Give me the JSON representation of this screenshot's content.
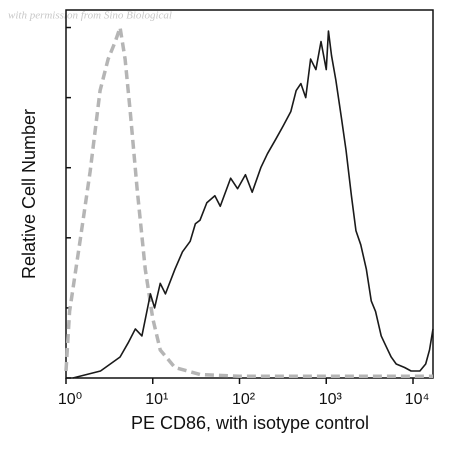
{
  "chart_data": {
    "type": "line",
    "annotation": "with permission from Sino Biological",
    "x_label": "PE CD86, with isotype control",
    "y_label": "Relative Cell Number",
    "xscale": "log",
    "xlim": [
      1,
      17000
    ],
    "ylim": [
      0,
      105
    ],
    "xticks": [
      {
        "value": 1,
        "label": "10⁰"
      },
      {
        "value": 10,
        "label": "10¹"
      },
      {
        "value": 100,
        "label": "10²"
      },
      {
        "value": 1000,
        "label": "10³"
      },
      {
        "value": 10000,
        "label": "10⁴"
      }
    ],
    "yticks": [
      0,
      20,
      40,
      60,
      80,
      100
    ],
    "series": [
      {
        "style": "dashed",
        "color": "#b5b5b5",
        "x": [
          1.0,
          1.1,
          1.45,
          1.9,
          2.47,
          3.06,
          3.7,
          4.2,
          4.8,
          5.5,
          6.6,
          8.2,
          10,
          12.2,
          18,
          35,
          100,
          1000,
          17000
        ],
        "values": [
          2,
          19,
          39,
          59,
          82,
          91,
          96,
          100,
          91,
          76,
          54,
          31,
          17,
          8,
          3,
          1,
          0.5,
          0.5,
          0.5
        ]
      },
      {
        "style": "solid",
        "color": "#1a1a1a",
        "x": [
          1.2,
          2.5,
          4.2,
          5.2,
          6.3,
          7.5,
          9.4,
          10.5,
          12.2,
          14,
          18,
          22,
          27,
          31,
          35,
          42,
          52,
          60,
          79,
          95,
          117,
          140,
          176,
          210,
          260,
          320,
          390,
          450,
          510,
          580,
          660,
          760,
          870,
          1000,
          1060,
          1150,
          1290,
          1500,
          1690,
          1950,
          2200,
          2500,
          2900,
          3300,
          3700,
          4300,
          4900,
          5600,
          6400,
          8000,
          9500,
          12000,
          14000,
          15500,
          17000
        ],
        "values": [
          0,
          2,
          6,
          10,
          14,
          12,
          24,
          20,
          27,
          24,
          31,
          36,
          39,
          44,
          45,
          50,
          52,
          49,
          57,
          54,
          58,
          53,
          60,
          64,
          68,
          72,
          76,
          82,
          84,
          80,
          91,
          88,
          96,
          88,
          99,
          92,
          85,
          74,
          65,
          52,
          42,
          38,
          31,
          22,
          19,
          12,
          9,
          6,
          4,
          3,
          2,
          2,
          4,
          8,
          14
        ]
      }
    ]
  }
}
